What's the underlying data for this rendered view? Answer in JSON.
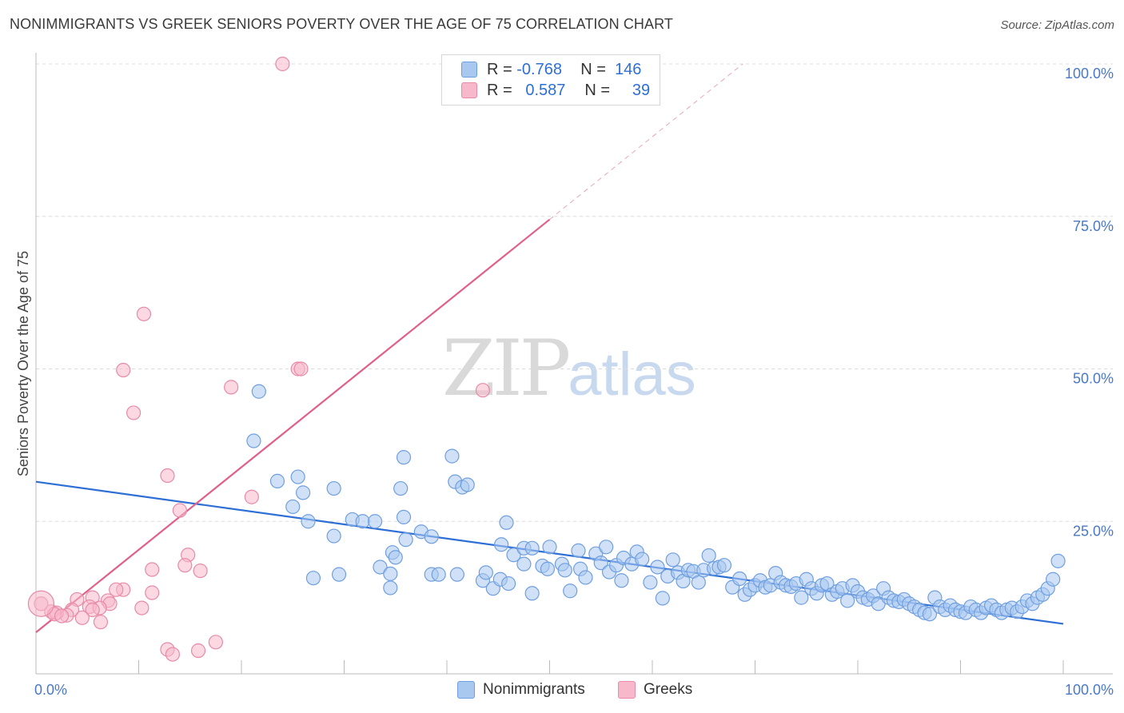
{
  "title": "NONIMMIGRANTS VS GREEK SENIORS POVERTY OVER THE AGE OF 75 CORRELATION CHART",
  "source": "Source: ZipAtlas.com",
  "watermark": {
    "zip": "ZIP",
    "atlas": "atlas"
  },
  "legend": {
    "rows": [
      {
        "r_label": "R =",
        "r_value": "-0.768",
        "n_label": "N =",
        "n_value": "146",
        "color": "#a9c8f0",
        "border": "#6f9fe0"
      },
      {
        "r_label": "R =",
        "r_value": "0.587",
        "n_label": "N =",
        "n_value": "39",
        "color": "#f7b8cb",
        "border": "#e88aa8"
      }
    ]
  },
  "bottom_legend": [
    {
      "label": "Nonimmigrants",
      "color": "#a9c8f0",
      "border": "#6f9fe0"
    },
    {
      "label": "Greeks",
      "color": "#f7b8cb",
      "border": "#e88aa8"
    }
  ],
  "chart_data": {
    "type": "scatter",
    "title": "NONIMMIGRANTS VS GREEK SENIORS POVERTY OVER THE AGE OF 75 CORRELATION CHART",
    "xlabel": "",
    "ylabel": "Seniors Poverty Over the Age of 75",
    "xlim": [
      0,
      100
    ],
    "ylim": [
      0,
      100
    ],
    "x_tick_labels": [
      {
        "value": 0,
        "label": "0.0%"
      },
      {
        "value": 100,
        "label": "100.0%"
      }
    ],
    "y_tick_labels": [
      {
        "value": 25,
        "label": "25.0%"
      },
      {
        "value": 50,
        "label": "50.0%"
      },
      {
        "value": 75,
        "label": "75.0%"
      },
      {
        "value": 100,
        "label": "100.0%"
      }
    ],
    "grid": "horizontal dashed",
    "legend_position": "top-center",
    "series": [
      {
        "name": "Nonimmigrants",
        "color": "#a9c8f0",
        "edge": "#6f9fe0",
        "trend_color": "#2e6fd6",
        "trend": {
          "x0": 0,
          "y0": 31.5,
          "x1": 100,
          "y1": 8.2
        },
        "points": [
          [
            21.7,
            46.3
          ],
          [
            21.2,
            38.2
          ],
          [
            25.5,
            32.3
          ],
          [
            23.5,
            31.6
          ],
          [
            26.0,
            29.7
          ],
          [
            29.0,
            30.4
          ],
          [
            25.0,
            27.4
          ],
          [
            26.5,
            25.0
          ],
          [
            29.0,
            22.6
          ],
          [
            30.8,
            25.3
          ],
          [
            31.8,
            25.0
          ],
          [
            33.0,
            25.0
          ],
          [
            35.8,
            35.5
          ],
          [
            35.8,
            25.7
          ],
          [
            37.5,
            23.3
          ],
          [
            38.5,
            22.5
          ],
          [
            40.5,
            35.7
          ],
          [
            40.8,
            31.5
          ],
          [
            41.5,
            30.6
          ],
          [
            42.0,
            31.0
          ],
          [
            35.5,
            30.4
          ],
          [
            36.0,
            22.0
          ],
          [
            34.7,
            19.9
          ],
          [
            35.0,
            19.1
          ],
          [
            33.5,
            17.5
          ],
          [
            34.5,
            16.4
          ],
          [
            34.5,
            14.1
          ],
          [
            27.0,
            15.7
          ],
          [
            29.5,
            16.3
          ],
          [
            38.5,
            16.3
          ],
          [
            39.2,
            16.3
          ],
          [
            41.0,
            16.3
          ],
          [
            43.5,
            15.3
          ],
          [
            43.8,
            16.6
          ],
          [
            44.5,
            14.0
          ],
          [
            45.2,
            15.5
          ],
          [
            46.0,
            14.8
          ],
          [
            45.8,
            24.8
          ],
          [
            45.3,
            21.2
          ],
          [
            46.5,
            19.5
          ],
          [
            47.5,
            20.6
          ],
          [
            48.3,
            20.6
          ],
          [
            47.5,
            18.0
          ],
          [
            48.3,
            13.2
          ],
          [
            49.3,
            17.7
          ],
          [
            50.0,
            20.8
          ],
          [
            49.8,
            17.2
          ],
          [
            51.2,
            18.0
          ],
          [
            51.5,
            17.0
          ],
          [
            52.0,
            13.6
          ],
          [
            52.8,
            20.2
          ],
          [
            53.0,
            17.2
          ],
          [
            53.5,
            15.8
          ],
          [
            54.5,
            19.7
          ],
          [
            55.0,
            18.2
          ],
          [
            55.5,
            20.8
          ],
          [
            55.8,
            16.7
          ],
          [
            56.5,
            17.8
          ],
          [
            57.0,
            15.3
          ],
          [
            57.2,
            19.0
          ],
          [
            58.0,
            18.0
          ],
          [
            58.5,
            20.0
          ],
          [
            59.0,
            18.8
          ],
          [
            59.8,
            15.0
          ],
          [
            60.5,
            17.5
          ],
          [
            61.0,
            12.4
          ],
          [
            61.5,
            16.0
          ],
          [
            62.0,
            18.7
          ],
          [
            62.5,
            16.6
          ],
          [
            63.0,
            15.2
          ],
          [
            63.5,
            17.0
          ],
          [
            64.0,
            16.8
          ],
          [
            64.5,
            15.0
          ],
          [
            65.0,
            17.0
          ],
          [
            65.5,
            19.4
          ],
          [
            66.0,
            17.3
          ],
          [
            66.5,
            17.5
          ],
          [
            67.0,
            17.8
          ],
          [
            67.8,
            14.2
          ],
          [
            68.5,
            15.6
          ],
          [
            69.0,
            13.0
          ],
          [
            69.5,
            13.8
          ],
          [
            70.0,
            14.5
          ],
          [
            70.5,
            15.3
          ],
          [
            71.0,
            14.2
          ],
          [
            71.5,
            14.5
          ],
          [
            72.0,
            16.5
          ],
          [
            72.5,
            15.0
          ],
          [
            73.0,
            14.5
          ],
          [
            73.5,
            14.3
          ],
          [
            74.0,
            14.8
          ],
          [
            74.5,
            12.5
          ],
          [
            75.0,
            15.5
          ],
          [
            75.5,
            14.0
          ],
          [
            76.0,
            13.2
          ],
          [
            76.5,
            14.5
          ],
          [
            77.0,
            14.8
          ],
          [
            77.5,
            13.0
          ],
          [
            78.0,
            13.5
          ],
          [
            78.5,
            14.0
          ],
          [
            79.0,
            12.0
          ],
          [
            79.5,
            14.5
          ],
          [
            80.0,
            13.5
          ],
          [
            80.5,
            12.5
          ],
          [
            81.0,
            12.2
          ],
          [
            81.5,
            12.8
          ],
          [
            82.0,
            11.5
          ],
          [
            82.5,
            14.0
          ],
          [
            83.0,
            12.5
          ],
          [
            83.5,
            12.0
          ],
          [
            84.0,
            11.8
          ],
          [
            84.5,
            12.2
          ],
          [
            85.0,
            11.5
          ],
          [
            85.5,
            11.0
          ],
          [
            86.0,
            10.5
          ],
          [
            86.5,
            10.0
          ],
          [
            87.0,
            9.8
          ],
          [
            87.5,
            12.5
          ],
          [
            88.0,
            11.0
          ],
          [
            88.5,
            10.5
          ],
          [
            89.0,
            11.2
          ],
          [
            89.5,
            10.5
          ],
          [
            90.0,
            10.2
          ],
          [
            90.5,
            10.0
          ],
          [
            91.0,
            11.0
          ],
          [
            91.5,
            10.5
          ],
          [
            92.0,
            10.0
          ],
          [
            92.5,
            10.8
          ],
          [
            93.0,
            11.2
          ],
          [
            93.5,
            10.5
          ],
          [
            94.0,
            10.0
          ],
          [
            94.5,
            10.5
          ],
          [
            95.0,
            10.8
          ],
          [
            95.5,
            10.2
          ],
          [
            96.0,
            11.0
          ],
          [
            96.5,
            12.0
          ],
          [
            97.0,
            11.5
          ],
          [
            97.5,
            12.5
          ],
          [
            98.0,
            13.0
          ],
          [
            98.5,
            14.0
          ],
          [
            99.0,
            15.5
          ],
          [
            99.5,
            18.5
          ]
        ]
      },
      {
        "name": "Greeks",
        "color": "#f7b8cb",
        "edge": "#e88aa8",
        "trend_color": "#e0608a",
        "trend": {
          "x0": 0,
          "y0": 6.8,
          "x1": 50,
          "y1": 74.5
        },
        "trend_dashed_extension": {
          "x0": 50,
          "y0": 74.5,
          "x1": 68.8,
          "y1": 100
        },
        "points": [
          [
            24.0,
            100
          ],
          [
            10.5,
            59.0
          ],
          [
            8.5,
            49.8
          ],
          [
            25.5,
            50.0
          ],
          [
            25.8,
            50.0
          ],
          [
            19.0,
            47.0
          ],
          [
            43.5,
            46.5
          ],
          [
            9.5,
            42.8
          ],
          [
            12.8,
            32.5
          ],
          [
            21.0,
            29.0
          ],
          [
            14.0,
            26.8
          ],
          [
            14.8,
            19.5
          ],
          [
            14.5,
            17.8
          ],
          [
            16.0,
            16.9
          ],
          [
            11.3,
            17.1
          ],
          [
            11.3,
            13.3
          ],
          [
            8.5,
            13.8
          ],
          [
            7.8,
            13.8
          ],
          [
            7.0,
            12.0
          ],
          [
            5.5,
            12.5
          ],
          [
            7.2,
            11.5
          ],
          [
            4.0,
            12.2
          ],
          [
            5.2,
            11.0
          ],
          [
            6.2,
            10.8
          ],
          [
            5.5,
            10.5
          ],
          [
            10.3,
            10.8
          ],
          [
            3.5,
            10.5
          ],
          [
            3.0,
            9.6
          ],
          [
            1.5,
            10.2
          ],
          [
            2.0,
            10.0
          ],
          [
            1.8,
            9.8
          ],
          [
            2.5,
            9.5
          ],
          [
            6.3,
            8.5
          ],
          [
            4.5,
            9.2
          ],
          [
            0.5,
            11.5
          ],
          [
            12.8,
            4.0
          ],
          [
            13.3,
            3.2
          ],
          [
            15.8,
            3.8
          ],
          [
            17.5,
            5.2
          ]
        ]
      }
    ]
  }
}
